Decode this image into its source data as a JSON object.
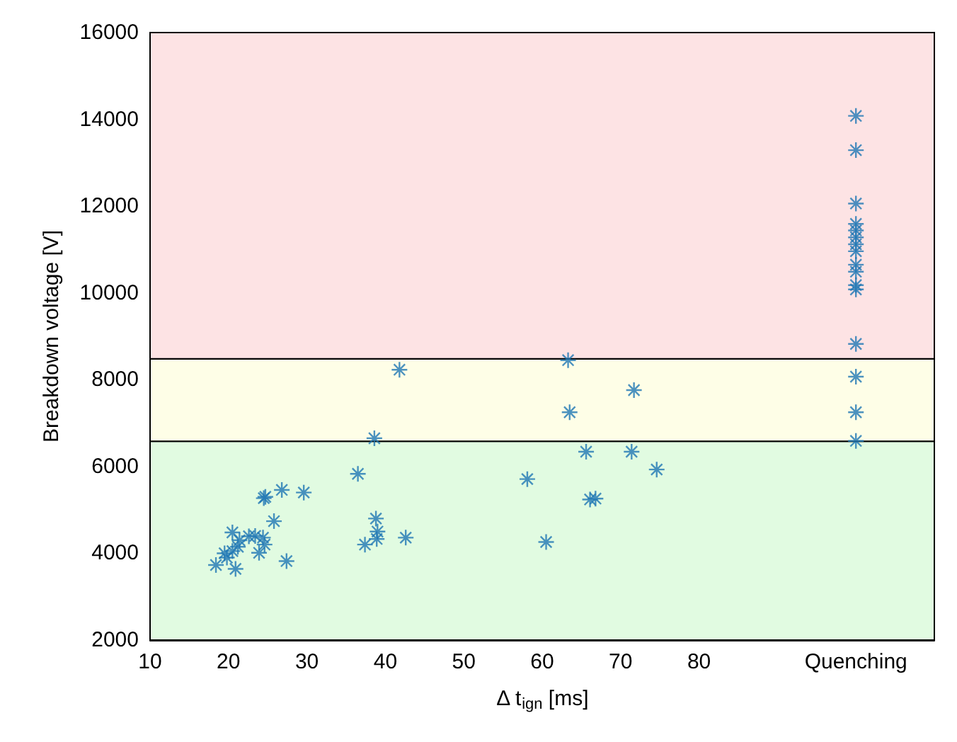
{
  "chart_data": {
    "type": "scatter",
    "xlabel": "Δ t$_{ign}$ [ms]",
    "ylabel": "Breakdown voltage [V]",
    "x": [
      41.8,
      38.6,
      36.5,
      26.8,
      24.7,
      24.5,
      29.6,
      25.8,
      24.4,
      22.6,
      23.4,
      20.5,
      21.4,
      18.4,
      20.9,
      19.8,
      20.5,
      21.2,
      19.5,
      23.9,
      24.6,
      27.4,
      37.4,
      38.9,
      39,
      38.8,
      42.6,
      58.1,
      60.5,
      63.3,
      63.5,
      65.6,
      66.1,
      66.8,
      71.4,
      71.7,
      74.6,
      100,
      100,
      100,
      100,
      100,
      100,
      100,
      100,
      100,
      100,
      100,
      100,
      100,
      100,
      100,
      100
    ],
    "values": [
      8230,
      6650,
      5830,
      5460,
      5300,
      5270,
      5400,
      4740,
      4360,
      4390,
      4400,
      4480,
      4300,
      3730,
      3640,
      3900,
      4050,
      4150,
      4000,
      4010,
      4200,
      3820,
      4200,
      4330,
      4500,
      4800,
      4360,
      5710,
      4260,
      8450,
      7250,
      6340,
      5240,
      5260,
      6340,
      7760,
      5930,
      14080,
      13290,
      12060,
      11590,
      11440,
      11280,
      11120,
      10960,
      10490,
      10180,
      10080,
      8825,
      8070,
      7250,
      6590,
      10650
    ],
    "color": "#1f77b4",
    "marker": "cross",
    "xlim": [
      10,
      110
    ],
    "xticks": [
      10,
      20,
      30,
      40,
      50,
      60,
      70,
      80,
      {
        "value": 100,
        "label": "Quenching"
      }
    ],
    "ylim": [
      2000,
      16000
    ],
    "yticks": [
      2000,
      4000,
      6000,
      8000,
      10000,
      12000,
      14000,
      16000
    ],
    "bands": [
      {
        "axis": "y",
        "from": 2000,
        "to": 6580,
        "color": "#e1fbe1"
      },
      {
        "axis": "y",
        "from": 6580,
        "to": 8480,
        "color": "#fefee7"
      },
      {
        "axis": "y",
        "from": 8480,
        "to": 16000,
        "color": "#fde3e4"
      }
    ]
  }
}
